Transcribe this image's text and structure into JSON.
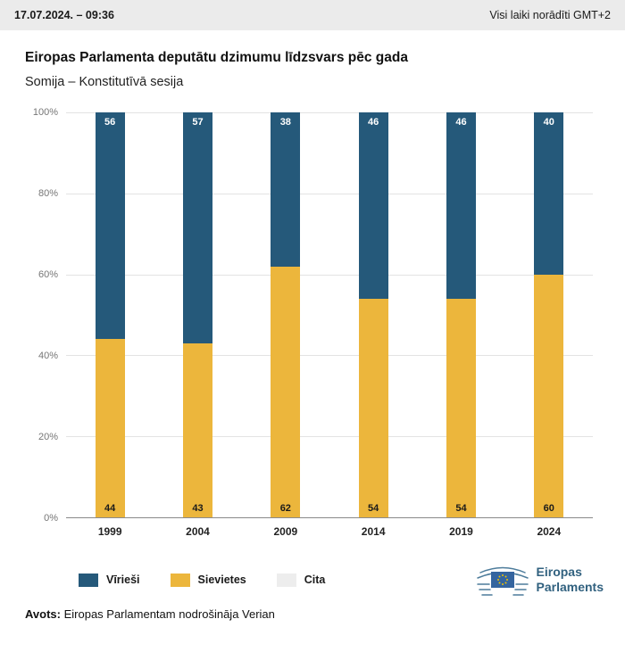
{
  "header": {
    "datetime": "17.07.2024. – 09:36",
    "timezone_note": "Visi laiki norādīti GMT+2"
  },
  "main": {
    "title": "Eiropas Parlamenta deputātu dzimumu līdzsvars pēc gada",
    "subtitle": "Somija – Konstitutīvā sesija"
  },
  "chart_data": {
    "type": "bar",
    "stacked": true,
    "percent": true,
    "title": "Eiropas Parlamenta deputātu dzimumu līdzsvars pēc gada",
    "subtitle": "Somija – Konstitutīvā sesija",
    "categories": [
      "1999",
      "2004",
      "2009",
      "2014",
      "2019",
      "2024"
    ],
    "series": [
      {
        "name": "Vīrieši",
        "color": "#25597a",
        "values": [
          56,
          57,
          38,
          46,
          46,
          40
        ]
      },
      {
        "name": "Sievietes",
        "color": "#ecb63c",
        "values": [
          44,
          43,
          62,
          54,
          54,
          60
        ]
      },
      {
        "name": "Cita",
        "color": "#ededed",
        "values": [
          0,
          0,
          0,
          0,
          0,
          0
        ]
      }
    ],
    "ylim": [
      0,
      100
    ],
    "yticks": [
      0,
      20,
      40,
      60,
      80,
      100
    ],
    "ytick_suffix": "%",
    "grid": true,
    "legend_position": "bottom"
  },
  "footer": {
    "source_label": "Avots:",
    "source_text": "Eiropas Parlamentam nodrošināja Verian"
  },
  "logo": {
    "line1": "Eiropas",
    "line2": "Parlaments"
  },
  "colors": {
    "topbar": "#ebebeb",
    "logo_text": "#31617f",
    "men_label": "#ffffff",
    "women_label": "#1a1a1a"
  }
}
